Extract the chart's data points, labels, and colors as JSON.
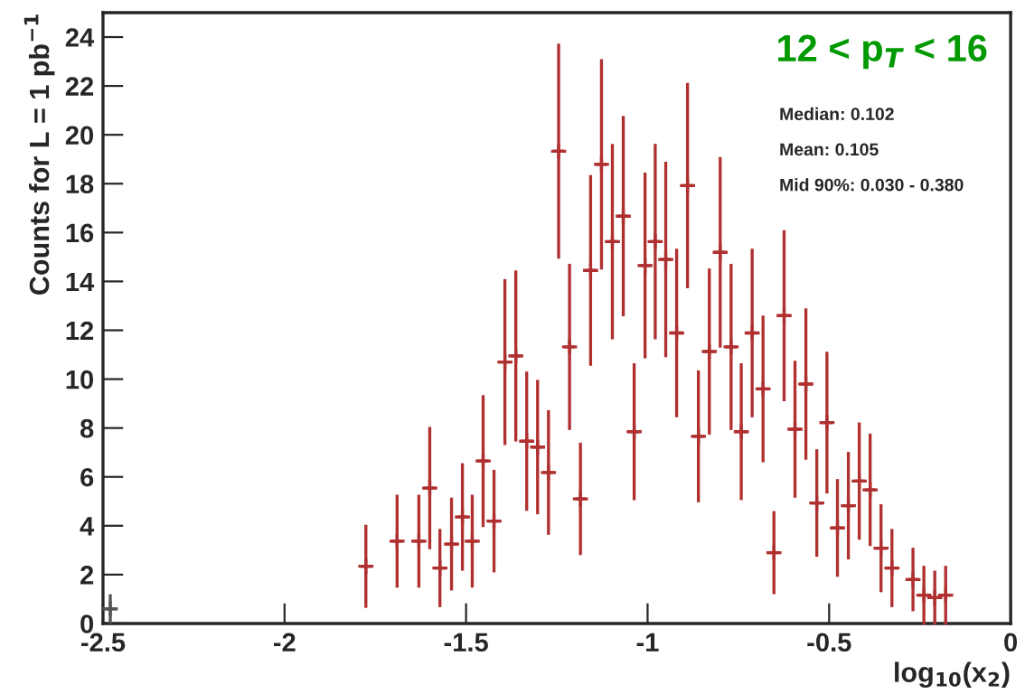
{
  "chart_data": {
    "type": "scatter",
    "xlabel": "log$_{10}$(x$_{2}$)",
    "ylabel": "Counts for L = 1 pb$^{−1}$",
    "annotations": [
      "12 < p$_{T}$ < 16",
      "Median: 0.102",
      "Mean: 0.105",
      "Mid 90%: 0.030 - 0.380"
    ],
    "xlim": [
      -2.5,
      0
    ],
    "xticks": [
      -2.5,
      -2,
      -1.5,
      -1,
      -0.5,
      0
    ],
    "ylim": [
      0,
      25
    ],
    "yticks": [
      0,
      2,
      4,
      6,
      8,
      10,
      12,
      14,
      16,
      18,
      20,
      22,
      24
    ],
    "marker": "cross",
    "legend": false,
    "grid": false,
    "series": [
      {
        "color": "#b03030",
        "x": [
          -1.776,
          -1.69,
          -1.63,
          -1.6,
          -1.572,
          -1.54,
          -1.51,
          -1.483,
          -1.453,
          -1.423,
          -1.393,
          -1.363,
          -1.333,
          -1.303,
          -1.273,
          -1.245,
          -1.215,
          -1.185,
          -1.157,
          -1.127,
          -1.097,
          -1.067,
          -1.037,
          -1.007,
          -0.979,
          -0.95,
          -0.92,
          -0.89,
          -0.86,
          -0.83,
          -0.8,
          -0.77,
          -0.742,
          -0.712,
          -0.682,
          -0.652,
          -0.624,
          -0.594,
          -0.564,
          -0.534,
          -0.506,
          -0.477,
          -0.447,
          -0.417,
          -0.387,
          -0.357,
          -0.327,
          -0.269,
          -0.239,
          -0.209,
          -0.179
        ],
        "values": [
          2.34,
          3.37,
          3.37,
          5.54,
          2.27,
          3.25,
          4.36,
          3.37,
          6.65,
          4.19,
          10.7,
          10.95,
          7.46,
          7.22,
          6.18,
          19.33,
          11.32,
          5.1,
          14.45,
          18.79,
          15.63,
          16.67,
          7.85,
          14.65,
          15.63,
          14.9,
          11.89,
          17.92,
          7.66,
          11.13,
          15.19,
          11.32,
          7.85,
          11.89,
          9.6,
          2.9,
          12.6,
          7.95,
          9.8,
          4.93,
          8.22,
          3.91,
          4.82,
          5.83,
          5.47,
          3.08,
          2.27,
          1.8,
          1.16,
          1.06,
          1.16
        ],
        "errors": [
          1.7,
          1.9,
          1.9,
          2.5,
          1.6,
          1.9,
          2.2,
          1.9,
          2.7,
          2.1,
          3.4,
          3.5,
          2.85,
          2.75,
          2.55,
          4.4,
          3.4,
          2.3,
          3.9,
          4.3,
          4.0,
          4.1,
          2.8,
          3.8,
          4.0,
          4.0,
          3.45,
          4.2,
          2.7,
          3.4,
          3.9,
          3.4,
          2.8,
          3.45,
          3.0,
          1.7,
          3.5,
          2.8,
          3.1,
          2.2,
          2.9,
          2.0,
          2.2,
          2.4,
          2.3,
          1.8,
          1.6,
          1.3,
          1.2,
          1.1,
          1.2
        ],
        "xerrors": [
          0.015,
          0.015,
          0.015,
          0.015,
          0.015,
          0.015,
          0.015,
          0.015,
          0.015,
          0.015,
          0.015,
          0.015,
          0.015,
          0.015,
          0.015,
          0.015,
          0.015,
          0.015,
          0.015,
          0.015,
          0.015,
          0.015,
          0.015,
          0.015,
          0.015,
          0.015,
          0.015,
          0.015,
          0.015,
          0.015,
          0.015,
          0.015,
          0.015,
          0.015,
          0.015,
          0.015,
          0.015,
          0.015,
          0.015,
          0.015,
          0.015,
          0.015,
          0.015,
          0.015,
          0.015,
          0.015,
          0.015,
          0.015,
          0.015,
          0.015,
          0.015
        ]
      },
      {
        "color": "#555555",
        "x": [
          -2.48
        ],
        "values": [
          0.6
        ],
        "errors": [
          0.6
        ],
        "xerrors": [
          0.015
        ]
      }
    ]
  }
}
